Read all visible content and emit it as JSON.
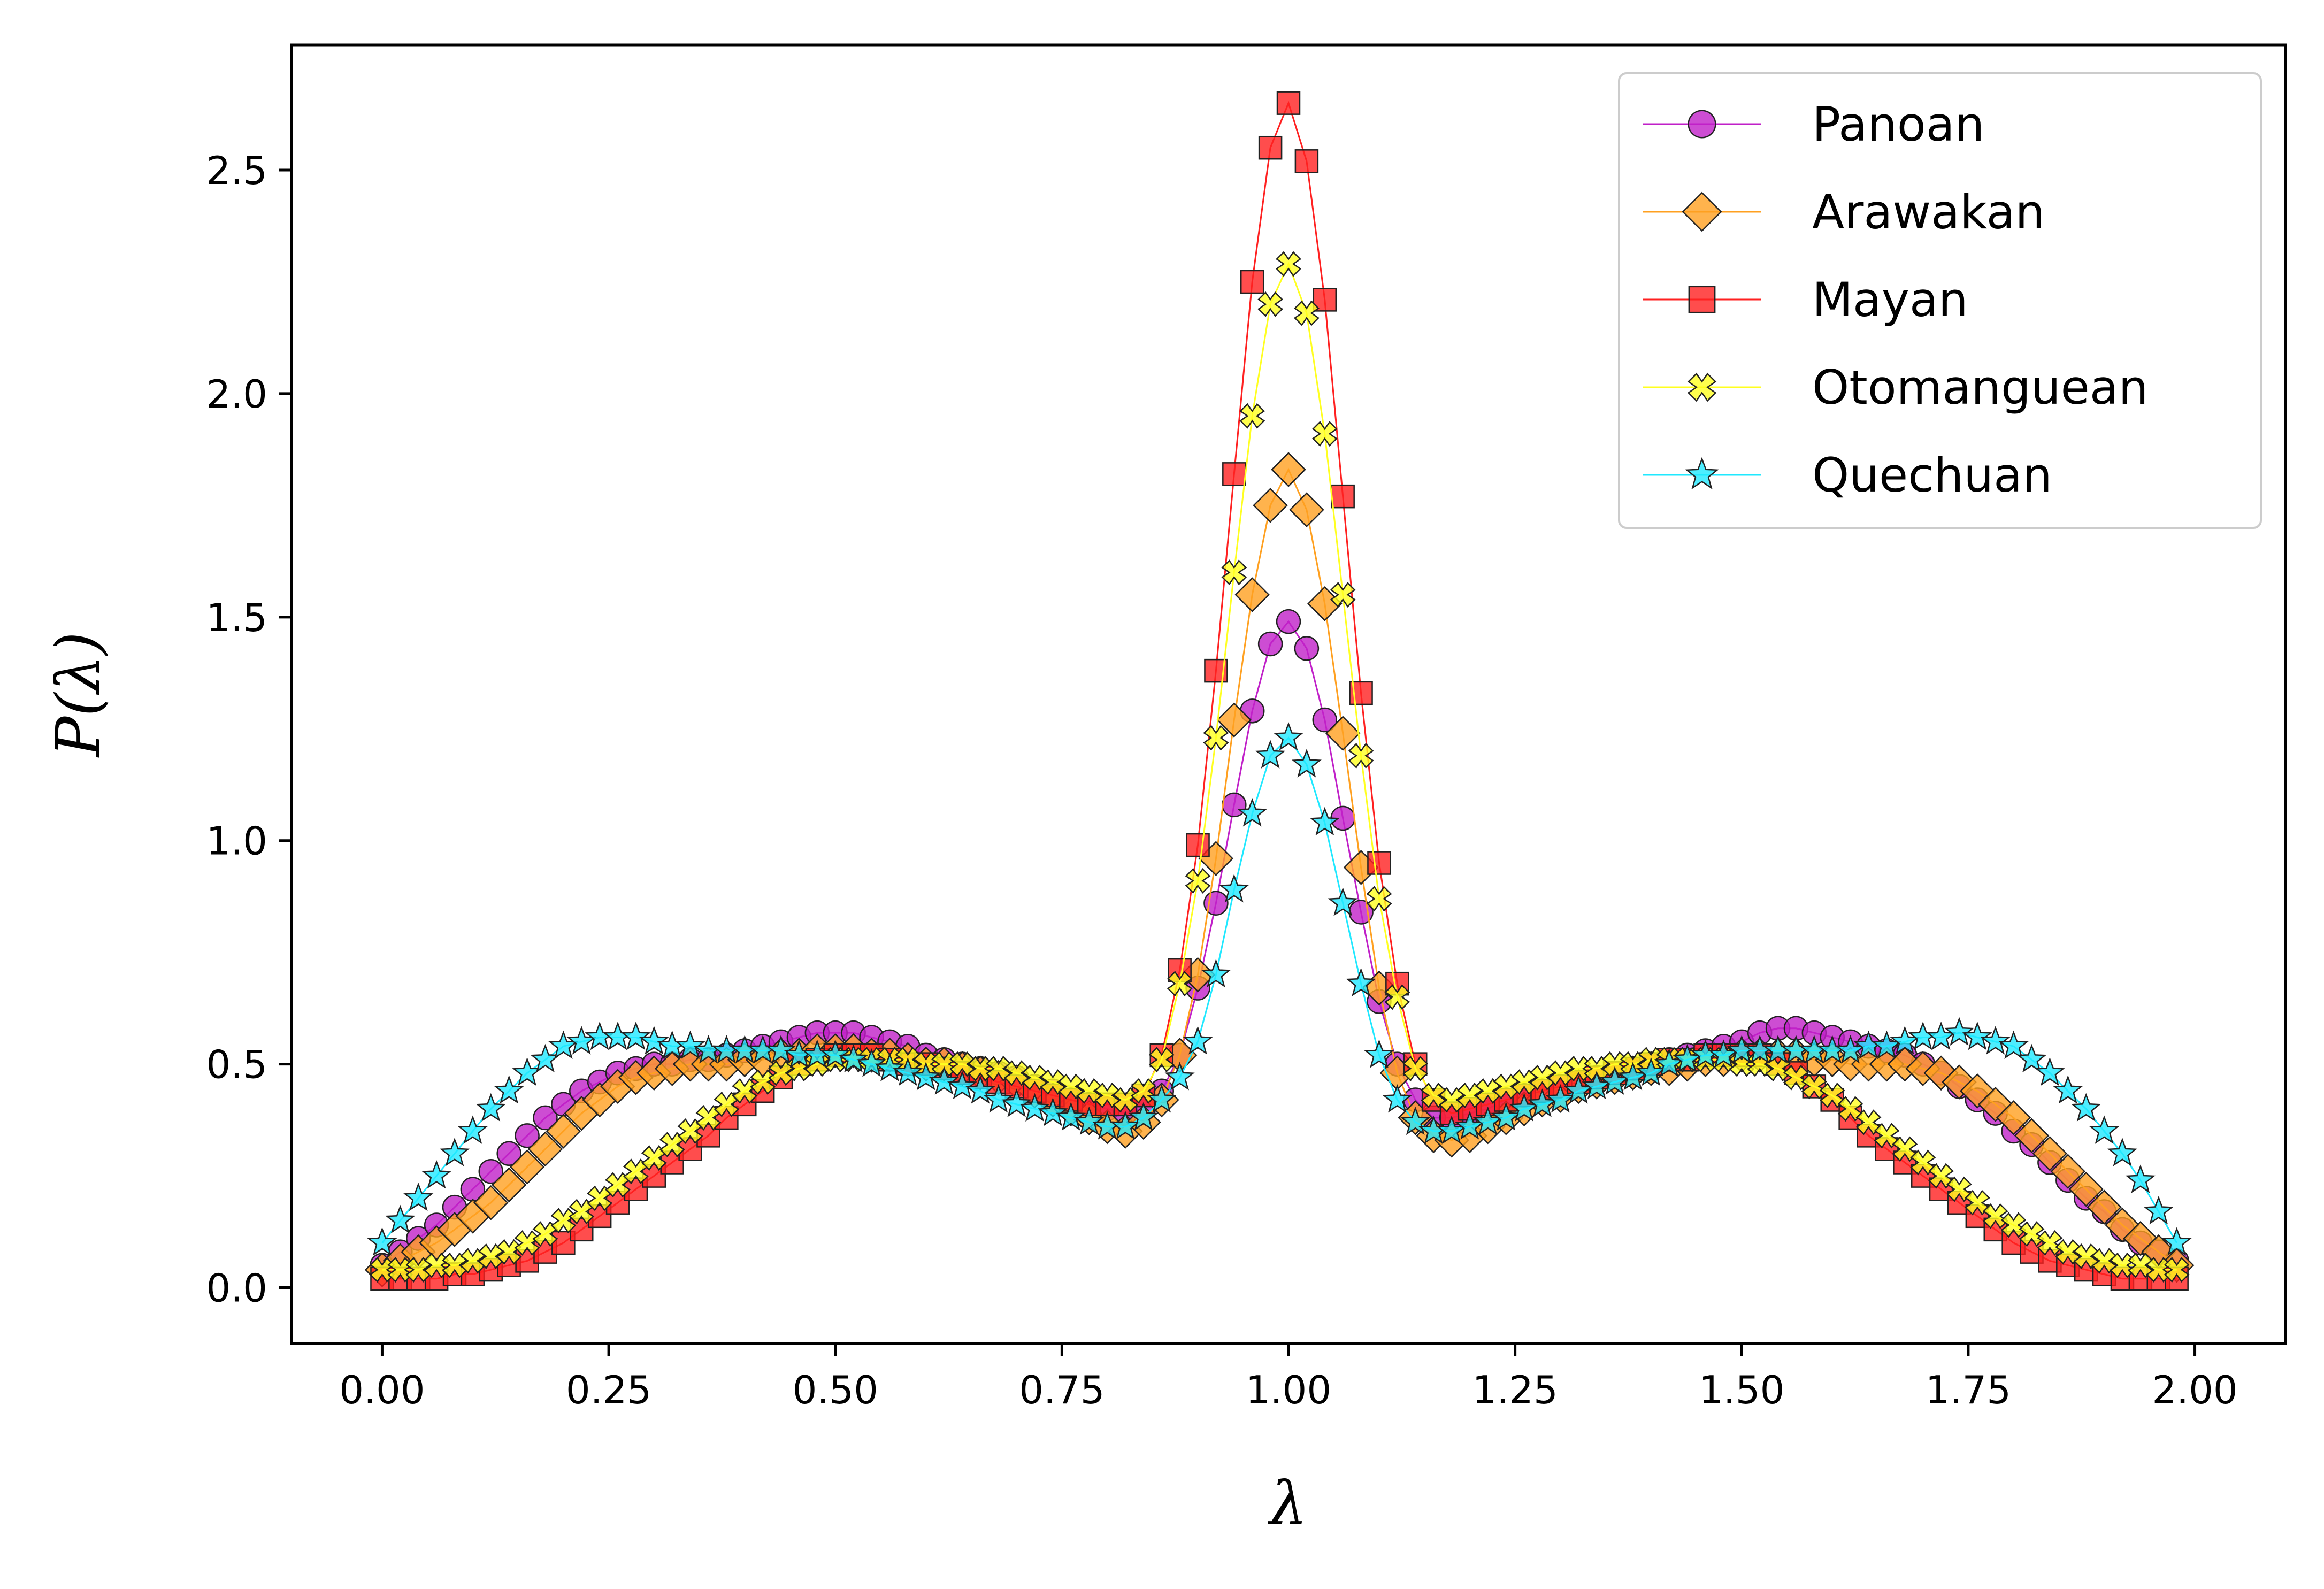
{
  "chart_data": {
    "type": "line",
    "xlabel": "λ",
    "ylabel": "P(λ)",
    "xlim": [
      -0.1,
      2.1
    ],
    "ylim": [
      -0.125,
      2.78
    ],
    "xticks": [
      0.0,
      0.25,
      0.5,
      0.75,
      1.0,
      1.25,
      1.5,
      1.75,
      2.0
    ],
    "xtick_labels": [
      "0.00",
      "0.25",
      "0.50",
      "0.75",
      "1.00",
      "1.25",
      "1.50",
      "1.75",
      "2.00"
    ],
    "yticks": [
      0.0,
      0.5,
      1.0,
      1.5,
      2.0,
      2.5
    ],
    "ytick_labels": [
      "0.0",
      "0.5",
      "1.0",
      "1.5",
      "2.0",
      "2.5"
    ],
    "grid": false,
    "legend_position": "top-right",
    "x": [
      0.0,
      0.02,
      0.04,
      0.06,
      0.08,
      0.1,
      0.12,
      0.14,
      0.16,
      0.18,
      0.2,
      0.22,
      0.24,
      0.26,
      0.28,
      0.3,
      0.32,
      0.34,
      0.36,
      0.38,
      0.4,
      0.42,
      0.44,
      0.46,
      0.48,
      0.5,
      0.52,
      0.54,
      0.56,
      0.58,
      0.6,
      0.62,
      0.64,
      0.66,
      0.68,
      0.7,
      0.72,
      0.74,
      0.76,
      0.78,
      0.8,
      0.82,
      0.84,
      0.86,
      0.88,
      0.9,
      0.92,
      0.94,
      0.96,
      0.98,
      1.0,
      1.02,
      1.04,
      1.06,
      1.08,
      1.1,
      1.12,
      1.14,
      1.16,
      1.18,
      1.2,
      1.22,
      1.24,
      1.26,
      1.28,
      1.3,
      1.32,
      1.34,
      1.36,
      1.38,
      1.4,
      1.42,
      1.44,
      1.46,
      1.48,
      1.5,
      1.52,
      1.54,
      1.56,
      1.58,
      1.6,
      1.62,
      1.64,
      1.66,
      1.68,
      1.7,
      1.72,
      1.74,
      1.76,
      1.78,
      1.8,
      1.82,
      1.84,
      1.86,
      1.88,
      1.9,
      1.92,
      1.94,
      1.96,
      1.98
    ],
    "series": [
      {
        "name": "Panoan",
        "color": "#c020c8",
        "marker": "circle",
        "values": [
          0.05,
          0.08,
          0.11,
          0.14,
          0.18,
          0.22,
          0.26,
          0.3,
          0.34,
          0.38,
          0.41,
          0.44,
          0.46,
          0.48,
          0.49,
          0.5,
          0.5,
          0.51,
          0.51,
          0.52,
          0.53,
          0.54,
          0.55,
          0.56,
          0.57,
          0.57,
          0.57,
          0.56,
          0.55,
          0.54,
          0.52,
          0.51,
          0.5,
          0.49,
          0.48,
          0.47,
          0.45,
          0.44,
          0.42,
          0.41,
          0.4,
          0.39,
          0.4,
          0.44,
          0.52,
          0.67,
          0.86,
          1.08,
          1.29,
          1.44,
          1.49,
          1.43,
          1.27,
          1.05,
          0.84,
          0.64,
          0.5,
          0.42,
          0.38,
          0.38,
          0.39,
          0.4,
          0.42,
          0.43,
          0.44,
          0.45,
          0.46,
          0.47,
          0.48,
          0.49,
          0.5,
          0.51,
          0.52,
          0.53,
          0.54,
          0.55,
          0.57,
          0.58,
          0.58,
          0.57,
          0.56,
          0.55,
          0.54,
          0.53,
          0.52,
          0.5,
          0.48,
          0.45,
          0.42,
          0.39,
          0.35,
          0.32,
          0.28,
          0.24,
          0.2,
          0.17,
          0.13,
          0.1,
          0.08,
          0.06
        ]
      },
      {
        "name": "Arawakan",
        "color": "#ffa020",
        "marker": "diamond",
        "values": [
          0.04,
          0.06,
          0.08,
          0.1,
          0.13,
          0.16,
          0.19,
          0.23,
          0.27,
          0.31,
          0.35,
          0.39,
          0.42,
          0.45,
          0.47,
          0.48,
          0.49,
          0.5,
          0.5,
          0.5,
          0.51,
          0.51,
          0.52,
          0.52,
          0.53,
          0.53,
          0.53,
          0.52,
          0.52,
          0.51,
          0.5,
          0.5,
          0.49,
          0.48,
          0.47,
          0.46,
          0.44,
          0.42,
          0.4,
          0.38,
          0.36,
          0.35,
          0.37,
          0.42,
          0.52,
          0.7,
          0.96,
          1.27,
          1.55,
          1.75,
          1.83,
          1.74,
          1.53,
          1.24,
          0.94,
          0.67,
          0.48,
          0.38,
          0.34,
          0.33,
          0.34,
          0.36,
          0.38,
          0.4,
          0.42,
          0.43,
          0.45,
          0.46,
          0.47,
          0.48,
          0.49,
          0.49,
          0.5,
          0.51,
          0.51,
          0.52,
          0.52,
          0.52,
          0.52,
          0.51,
          0.51,
          0.5,
          0.5,
          0.5,
          0.5,
          0.49,
          0.48,
          0.46,
          0.44,
          0.41,
          0.38,
          0.34,
          0.3,
          0.26,
          0.22,
          0.18,
          0.14,
          0.11,
          0.08,
          0.05
        ]
      },
      {
        "name": "Mayan",
        "color": "#ff2020",
        "marker": "square",
        "values": [
          0.02,
          0.02,
          0.02,
          0.02,
          0.03,
          0.03,
          0.04,
          0.05,
          0.06,
          0.08,
          0.1,
          0.13,
          0.16,
          0.19,
          0.22,
          0.25,
          0.28,
          0.31,
          0.34,
          0.38,
          0.41,
          0.44,
          0.47,
          0.5,
          0.51,
          0.52,
          0.52,
          0.52,
          0.51,
          0.5,
          0.5,
          0.49,
          0.48,
          0.47,
          0.46,
          0.45,
          0.44,
          0.43,
          0.42,
          0.41,
          0.41,
          0.41,
          0.43,
          0.52,
          0.71,
          0.99,
          1.38,
          1.82,
          2.25,
          2.55,
          2.65,
          2.52,
          2.21,
          1.77,
          1.33,
          0.95,
          0.68,
          0.5,
          0.42,
          0.39,
          0.4,
          0.41,
          0.42,
          0.43,
          0.44,
          0.45,
          0.46,
          0.47,
          0.48,
          0.49,
          0.5,
          0.51,
          0.51,
          0.52,
          0.52,
          0.52,
          0.52,
          0.5,
          0.48,
          0.45,
          0.42,
          0.38,
          0.34,
          0.31,
          0.28,
          0.25,
          0.22,
          0.19,
          0.16,
          0.13,
          0.1,
          0.08,
          0.06,
          0.05,
          0.04,
          0.03,
          0.02,
          0.02,
          0.02,
          0.02
        ]
      },
      {
        "name": "Otomanguean",
        "color": "#ffff20",
        "marker": "x",
        "values": [
          0.04,
          0.04,
          0.04,
          0.05,
          0.05,
          0.06,
          0.07,
          0.08,
          0.1,
          0.12,
          0.15,
          0.17,
          0.2,
          0.23,
          0.26,
          0.29,
          0.32,
          0.35,
          0.38,
          0.41,
          0.44,
          0.46,
          0.48,
          0.49,
          0.5,
          0.51,
          0.51,
          0.51,
          0.51,
          0.51,
          0.5,
          0.5,
          0.5,
          0.49,
          0.49,
          0.48,
          0.47,
          0.46,
          0.45,
          0.44,
          0.43,
          0.42,
          0.44,
          0.51,
          0.68,
          0.91,
          1.23,
          1.6,
          1.95,
          2.2,
          2.29,
          2.18,
          1.91,
          1.55,
          1.19,
          0.87,
          0.65,
          0.49,
          0.43,
          0.42,
          0.43,
          0.44,
          0.45,
          0.46,
          0.47,
          0.48,
          0.49,
          0.49,
          0.5,
          0.5,
          0.51,
          0.51,
          0.51,
          0.51,
          0.51,
          0.5,
          0.5,
          0.49,
          0.47,
          0.45,
          0.43,
          0.4,
          0.37,
          0.34,
          0.31,
          0.28,
          0.25,
          0.22,
          0.19,
          0.16,
          0.14,
          0.12,
          0.1,
          0.08,
          0.07,
          0.06,
          0.05,
          0.05,
          0.04,
          0.04
        ]
      },
      {
        "name": "Quechuan",
        "color": "#20e8ff",
        "marker": "star",
        "values": [
          0.1,
          0.15,
          0.2,
          0.25,
          0.3,
          0.35,
          0.4,
          0.44,
          0.48,
          0.51,
          0.54,
          0.55,
          0.56,
          0.56,
          0.56,
          0.55,
          0.54,
          0.54,
          0.53,
          0.53,
          0.53,
          0.53,
          0.53,
          0.52,
          0.52,
          0.52,
          0.51,
          0.5,
          0.49,
          0.48,
          0.47,
          0.46,
          0.45,
          0.44,
          0.42,
          0.41,
          0.4,
          0.39,
          0.38,
          0.37,
          0.36,
          0.36,
          0.38,
          0.42,
          0.47,
          0.55,
          0.7,
          0.89,
          1.06,
          1.19,
          1.23,
          1.17,
          1.04,
          0.86,
          0.68,
          0.52,
          0.42,
          0.37,
          0.35,
          0.35,
          0.36,
          0.37,
          0.38,
          0.4,
          0.41,
          0.42,
          0.44,
          0.45,
          0.46,
          0.47,
          0.48,
          0.5,
          0.51,
          0.52,
          0.52,
          0.53,
          0.53,
          0.53,
          0.53,
          0.53,
          0.53,
          0.53,
          0.54,
          0.54,
          0.55,
          0.56,
          0.56,
          0.57,
          0.56,
          0.55,
          0.54,
          0.51,
          0.48,
          0.44,
          0.4,
          0.35,
          0.3,
          0.24,
          0.17,
          0.1
        ]
      }
    ]
  }
}
